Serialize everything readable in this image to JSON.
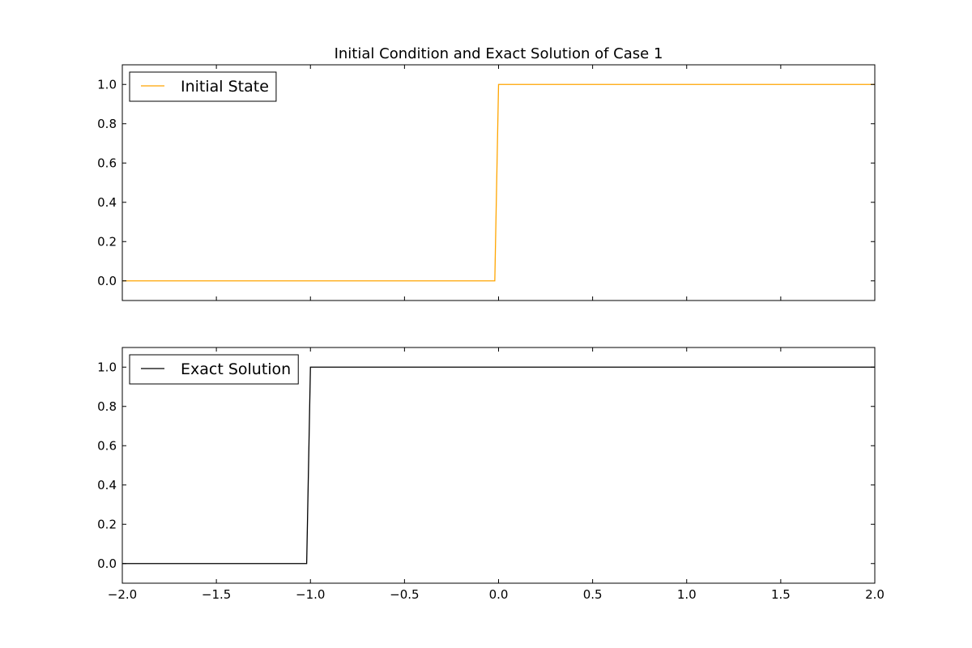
{
  "chart_data": [
    {
      "type": "line",
      "title": "Initial Condition and Exact Solution of Case 1",
      "xlabel": "",
      "ylabel": "",
      "xlim": [
        -2.0,
        2.0
      ],
      "ylim": [
        -0.1,
        1.1
      ],
      "x_ticks": [
        "−2.0",
        "−1.5",
        "−1.0",
        "−0.5",
        "0.0",
        "0.5",
        "1.0",
        "1.5",
        "2.0"
      ],
      "x_tick_labels_visible": false,
      "y_ticks": [
        "0.0",
        "0.2",
        "0.4",
        "0.6",
        "0.8",
        "1.0"
      ],
      "grid": false,
      "legend": "top-left",
      "series": [
        {
          "name": "Initial State",
          "color": "#FFA500",
          "x": [
            -2.0,
            -0.02,
            0.0,
            2.0
          ],
          "y": [
            0.0,
            0.0,
            1.0,
            1.0
          ]
        }
      ]
    },
    {
      "type": "line",
      "title": "",
      "xlabel": "",
      "ylabel": "",
      "xlim": [
        -2.0,
        2.0
      ],
      "ylim": [
        -0.1,
        1.1
      ],
      "x_ticks": [
        "−2.0",
        "−1.5",
        "−1.0",
        "−0.5",
        "0.0",
        "0.5",
        "1.0",
        "1.5",
        "2.0"
      ],
      "x_tick_labels_visible": true,
      "y_ticks": [
        "0.0",
        "0.2",
        "0.4",
        "0.6",
        "0.8",
        "1.0"
      ],
      "grid": false,
      "legend": "top-left",
      "series": [
        {
          "name": "Exact Solution",
          "color": "#000000",
          "x": [
            -2.0,
            -1.02,
            -1.0,
            2.0
          ],
          "y": [
            0.0,
            0.0,
            1.0,
            1.0
          ]
        }
      ]
    }
  ]
}
